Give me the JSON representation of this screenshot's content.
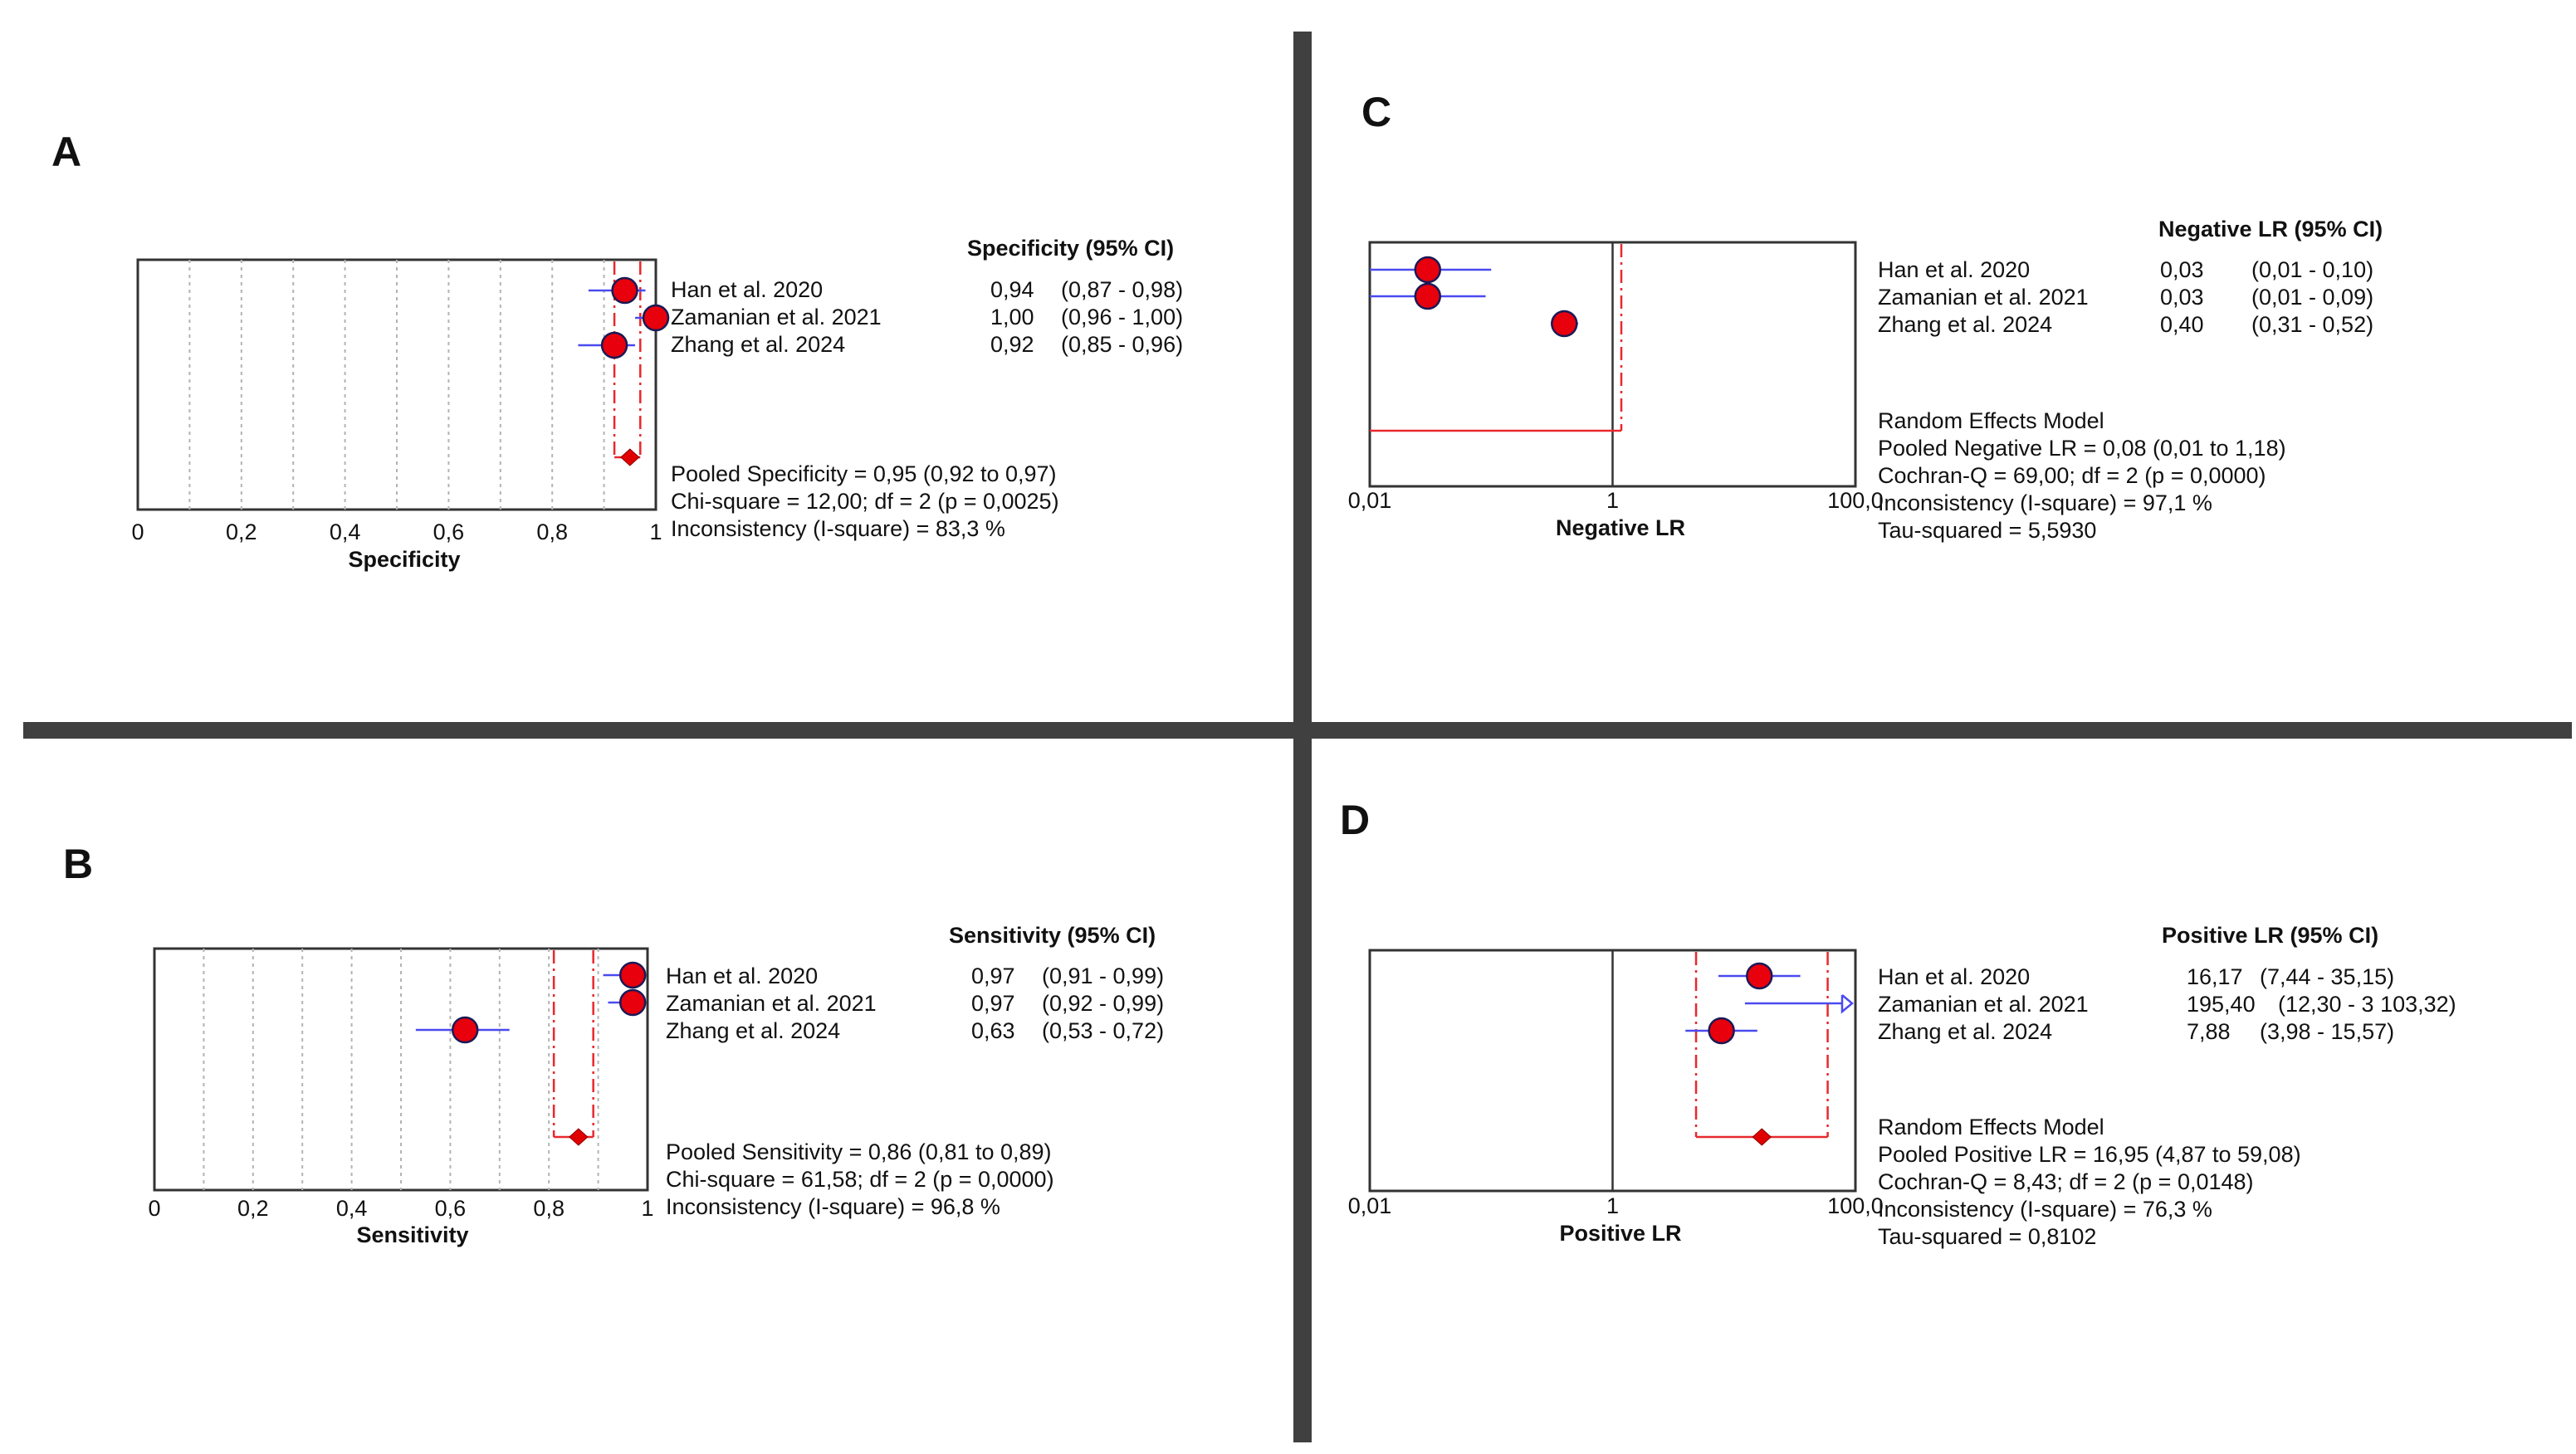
{
  "colors": {
    "divider": "#404040",
    "frame": "#333333",
    "grid": "#b3b3b3",
    "ci_line": "#4a4af0",
    "point_fill": "#e8000d",
    "point_stroke": "#1a1a55",
    "pooled_line": "#e8282d",
    "diamond": "#e00000"
  },
  "icons": {
    "arrow": "right-open-arrow-icon"
  },
  "chart_data": [
    {
      "panel": "A",
      "type": "forest",
      "scale": "linear",
      "xlabel": "Specificity",
      "xlim": [
        0,
        1
      ],
      "ticks": [
        "0",
        "0,2",
        "0,4",
        "0,6",
        "0,8",
        "1"
      ],
      "tick_values": [
        0,
        0.2,
        0.4,
        0.6,
        0.8,
        1.0
      ],
      "grid_values": [
        0.1,
        0.2,
        0.3,
        0.4,
        0.5,
        0.6,
        0.7,
        0.8,
        0.9
      ],
      "header": "Specificity (95% CI)",
      "studies": [
        {
          "name": "Han et al. 2020",
          "value": 0.94,
          "lo": 0.87,
          "hi": 0.98,
          "value_text": "0,94",
          "ci_text": "(0,87 - 0,98)"
        },
        {
          "name": "Zamanian et al. 2021",
          "value": 1.0,
          "lo": 0.96,
          "hi": 1.0,
          "value_text": "1,00",
          "ci_text": "(0,96 - 1,00)"
        },
        {
          "name": "Zhang et al. 2024",
          "value": 0.92,
          "lo": 0.85,
          "hi": 0.96,
          "value_text": "0,92",
          "ci_text": "(0,85 - 0,96)"
        }
      ],
      "pooled": {
        "value": 0.95,
        "lo": 0.92,
        "hi": 0.97
      },
      "pooled_style": "bracket",
      "stats": [
        "Pooled Specificity = 0,95 (0,92 to 0,97)",
        "Chi-square = 12,00; df = 2 (p = 0,0025)",
        "Inconsistency (I-square) = 83,3 %"
      ]
    },
    {
      "panel": "B",
      "type": "forest",
      "scale": "linear",
      "xlabel": "Sensitivity",
      "xlim": [
        0,
        1
      ],
      "ticks": [
        "0",
        "0,2",
        "0,4",
        "0,6",
        "0,8",
        "1"
      ],
      "tick_values": [
        0,
        0.2,
        0.4,
        0.6,
        0.8,
        1.0
      ],
      "grid_values": [
        0.1,
        0.2,
        0.3,
        0.4,
        0.5,
        0.6,
        0.7,
        0.8,
        0.9
      ],
      "header": "Sensitivity (95% CI)",
      "studies": [
        {
          "name": "Han et al. 2020",
          "value": 0.97,
          "lo": 0.91,
          "hi": 0.99,
          "value_text": "0,97",
          "ci_text": "(0,91 - 0,99)"
        },
        {
          "name": "Zamanian et al. 2021",
          "value": 0.97,
          "lo": 0.92,
          "hi": 0.99,
          "value_text": "0,97",
          "ci_text": "(0,92 - 0,99)"
        },
        {
          "name": "Zhang et al. 2024",
          "value": 0.63,
          "lo": 0.53,
          "hi": 0.72,
          "value_text": "0,63",
          "ci_text": "(0,53 - 0,72)"
        }
      ],
      "pooled": {
        "value": 0.86,
        "lo": 0.81,
        "hi": 0.89
      },
      "pooled_style": "bracket",
      "stats": [
        "Pooled Sensitivity = 0,86 (0,81 to 0,89)",
        "Chi-square = 61,58; df = 2 (p = 0,0000)",
        "Inconsistency (I-square) = 96,8 %"
      ]
    },
    {
      "panel": "C",
      "type": "forest",
      "scale": "log",
      "xlabel": "Negative LR",
      "xlim": [
        0.01,
        100
      ],
      "ticks": [
        "0,01",
        "1",
        "100,0"
      ],
      "tick_values": [
        0.01,
        1,
        100
      ],
      "reference_line": 1,
      "header": "Negative LR (95% CI)",
      "studies": [
        {
          "name": "Han et al. 2020",
          "value": 0.03,
          "lo": 0.01,
          "hi": 0.1,
          "value_text": "0,03",
          "ci_text": "(0,01 - 0,10)"
        },
        {
          "name": "Zamanian et al. 2021",
          "value": 0.03,
          "lo": 0.01,
          "hi": 0.09,
          "value_text": "0,03",
          "ci_text": "(0,01 - 0,09)"
        },
        {
          "name": "Zhang et al. 2024",
          "value": 0.4,
          "lo": 0.31,
          "hi": 0.52,
          "value_text": "0,40",
          "ci_text": "(0,31 - 0,52)"
        }
      ],
      "pooled": {
        "value": 0.08,
        "lo": 0.01,
        "hi": 1.18
      },
      "pooled_style": "line",
      "stats": [
        "Random Effects Model",
        "Pooled Negative LR = 0,08 (0,01 to 1,18)",
        "Cochran-Q = 69,00; df = 2 (p = 0,0000)",
        "Inconsistency (I-square) = 97,1 %",
        "Tau-squared = 5,5930"
      ]
    },
    {
      "panel": "D",
      "type": "forest",
      "scale": "log",
      "xlabel": "Positive LR",
      "xlim": [
        0.01,
        100
      ],
      "ticks": [
        "0,01",
        "1",
        "100,0"
      ],
      "tick_values": [
        0.01,
        1,
        100
      ],
      "reference_line": 1,
      "header": "Positive LR (95% CI)",
      "studies": [
        {
          "name": "Han et al. 2020",
          "value": 16.17,
          "lo": 7.44,
          "hi": 35.15,
          "value_text": "16,17",
          "ci_text": "(7,44 - 35,15)"
        },
        {
          "name": "Zamanian et al. 2021",
          "value": 195.4,
          "lo": 12.3,
          "hi": 3103.32,
          "value_text": "195,40",
          "ci_text": "(12,30 - 3 103,32)",
          "clipped": true
        },
        {
          "name": "Zhang et al. 2024",
          "value": 7.88,
          "lo": 3.98,
          "hi": 15.57,
          "value_text": "7,88",
          "ci_text": "(3,98 - 15,57)"
        }
      ],
      "pooled": {
        "value": 16.95,
        "lo": 4.87,
        "hi": 59.08
      },
      "pooled_style": "bracket",
      "stats": [
        "Random Effects Model",
        "Pooled Positive LR = 16,95 (4,87 to 59,08)",
        "Cochran-Q = 8,43; df = 2 (p = 0,0148)",
        "Inconsistency (I-square) = 76,3 %",
        "Tau-squared = 0,8102"
      ]
    }
  ]
}
